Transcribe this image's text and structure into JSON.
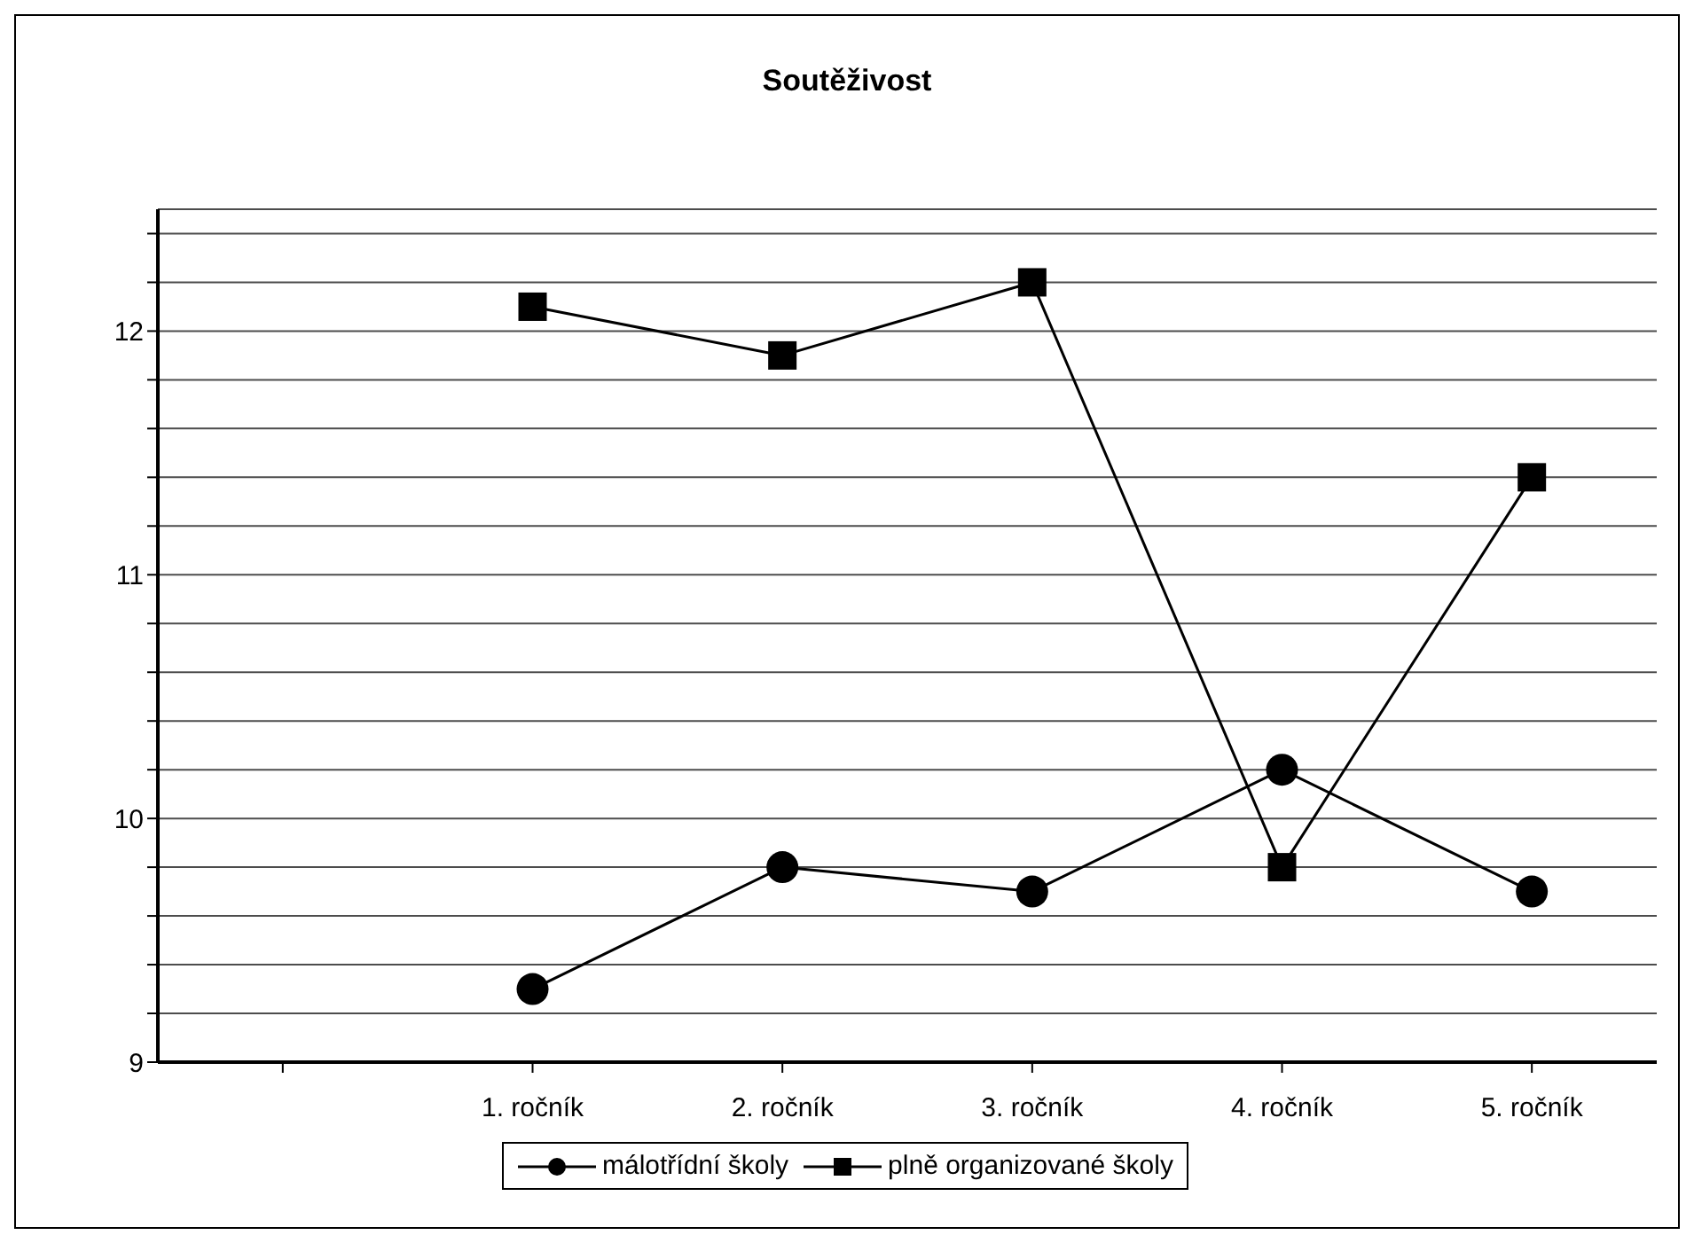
{
  "chart_data": {
    "type": "line",
    "title": "Soutěživost",
    "categories": [
      null,
      "1. ročník",
      "2. ročník",
      "3. ročník",
      "4. ročník",
      "5. ročník"
    ],
    "series": [
      {
        "name": "málotřídní školy",
        "color": "#000000",
        "marker": "circle",
        "values": [
          null,
          9.3,
          9.8,
          9.7,
          10.2,
          9.7
        ]
      },
      {
        "name": "plně organizované školy",
        "color": "#000000",
        "marker": "square",
        "values": [
          null,
          12.1,
          11.9,
          12.2,
          9.8,
          11.4
        ]
      }
    ],
    "ylim": [
      9,
      12.5
    ],
    "yticks": [
      9,
      {
        "value": 9.2,
        "label": null
      },
      {
        "value": 9.4,
        "label": null
      },
      {
        "value": 9.6,
        "label": null
      },
      {
        "value": 9.8,
        "label": null
      },
      10,
      {
        "value": 10.2,
        "label": null
      },
      {
        "value": 10.4,
        "label": null
      },
      {
        "value": 10.6,
        "label": null
      },
      {
        "value": 10.8,
        "label": null
      },
      11,
      {
        "value": 11.2,
        "label": null
      },
      {
        "value": 11.4,
        "label": null
      },
      {
        "value": 11.6,
        "label": null
      },
      {
        "value": 11.8,
        "label": null
      },
      12,
      {
        "value": 12.2,
        "label": null
      },
      {
        "value": 12.4,
        "label": null
      }
    ],
    "grid": "y",
    "legend": "bottom",
    "line_style": "solid"
  }
}
